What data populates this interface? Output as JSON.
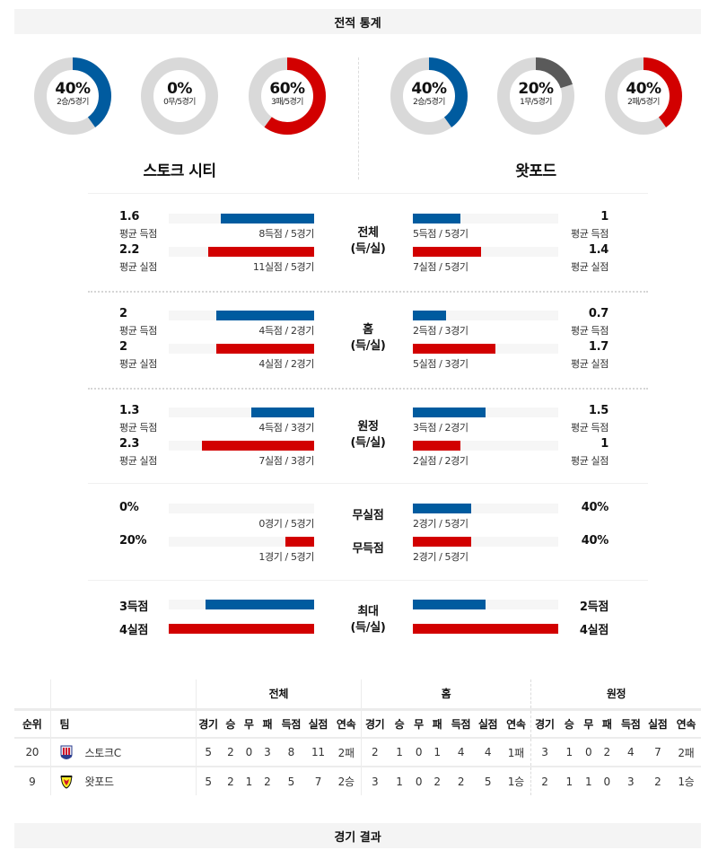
{
  "header": {
    "title": "전적 통계"
  },
  "footer": {
    "title": "경기 결과"
  },
  "colors": {
    "blue": "#005b9f",
    "red": "#d20000",
    "gray": "#5a5a5a",
    "track": "#d9d9d9",
    "bar_track": "#f6f6f6"
  },
  "teams": {
    "home": {
      "name": "스토크 시티",
      "donuts": [
        {
          "pct": "40%",
          "sub": "2승/5경기",
          "value": 40,
          "color": "#005b9f"
        },
        {
          "pct": "0%",
          "sub": "0무/5경기",
          "value": 0,
          "color": "#5a5a5a"
        },
        {
          "pct": "60%",
          "sub": "3패/5경기",
          "value": 60,
          "color": "#d20000"
        }
      ]
    },
    "away": {
      "name": "왓포드",
      "donuts": [
        {
          "pct": "40%",
          "sub": "2승/5경기",
          "value": 40,
          "color": "#005b9f"
        },
        {
          "pct": "20%",
          "sub": "1무/5경기",
          "value": 20,
          "color": "#5a5a5a"
        },
        {
          "pct": "40%",
          "sub": "2패/5경기",
          "value": 40,
          "color": "#d20000"
        }
      ]
    }
  },
  "groups": [
    {
      "label1": "전체",
      "label2": "(득/실)",
      "home": {
        "for_avg": "1.6",
        "for_label": "평균 득점",
        "for_cap": "8득점 / 5경기",
        "for_pct": 64,
        "against_avg": "2.2",
        "against_label": "평균 실점",
        "against_cap": "11실점 / 5경기",
        "against_pct": 73
      },
      "away": {
        "for_avg": "1",
        "for_label": "평균 득점",
        "for_cap": "5득점 / 5경기",
        "for_pct": 33,
        "against_avg": "1.4",
        "against_label": "평균 실점",
        "against_cap": "7실점 / 5경기",
        "against_pct": 47
      }
    },
    {
      "label1": "홈",
      "label2": "(득/실)",
      "home": {
        "for_avg": "2",
        "for_label": "평균 득점",
        "for_cap": "4득점 / 2경기",
        "for_pct": 67,
        "against_avg": "2",
        "against_label": "평균 실점",
        "against_cap": "4실점 / 2경기",
        "against_pct": 67
      },
      "away": {
        "for_avg": "0.7",
        "for_label": "평균 득점",
        "for_cap": "2득점 / 3경기",
        "for_pct": 23,
        "against_avg": "1.7",
        "against_label": "평균 실점",
        "against_cap": "5실점 / 3경기",
        "against_pct": 57
      }
    },
    {
      "label1": "원정",
      "label2": "(득/실)",
      "home": {
        "for_avg": "1.3",
        "for_label": "평균 득점",
        "for_cap": "4득점 / 3경기",
        "for_pct": 43,
        "against_avg": "2.3",
        "against_label": "평균 실점",
        "against_cap": "7실점 / 3경기",
        "against_pct": 77
      },
      "away": {
        "for_avg": "1.5",
        "for_label": "평균 득점",
        "for_cap": "3득점 / 2경기",
        "for_pct": 50,
        "against_avg": "1",
        "against_label": "평균 실점",
        "against_cap": "2실점 / 2경기",
        "against_pct": 33
      }
    }
  ],
  "clean": {
    "clean_sheet": {
      "label": "무실점",
      "home_pct": "0%",
      "home_cap": "0경기 / 5경기",
      "home_val": 0,
      "away_pct": "40%",
      "away_cap": "2경기 / 5경기",
      "away_val": 40
    },
    "no_score": {
      "label": "무득점",
      "home_pct": "20%",
      "home_cap": "1경기 / 5경기",
      "home_val": 20,
      "away_pct": "40%",
      "away_cap": "2경기 / 5경기",
      "away_val": 40
    }
  },
  "max": {
    "label1": "최대",
    "label2": "(득/실)",
    "home_for": "3득점",
    "home_for_pct": 75,
    "home_against": "4실점",
    "home_against_pct": 100,
    "away_for": "2득점",
    "away_for_pct": 50,
    "away_against": "4실점",
    "away_against_pct": 100
  },
  "table": {
    "group_headers": [
      "전체",
      "홈",
      "원정"
    ],
    "col_rank": "순위",
    "col_team": "팀",
    "sub_headers": [
      "경기",
      "승",
      "무",
      "패",
      "득점",
      "실점",
      "연속"
    ],
    "rows": [
      {
        "rank": "20",
        "team": "스토크C",
        "crest": "stoke-crest",
        "total": [
          "5",
          "2",
          "0",
          "3",
          "8",
          "11",
          "2패"
        ],
        "home": [
          "2",
          "1",
          "0",
          "1",
          "4",
          "4",
          "1패"
        ],
        "away": [
          "3",
          "1",
          "0",
          "2",
          "4",
          "7",
          "2패"
        ]
      },
      {
        "rank": "9",
        "team": "왓포드",
        "crest": "watford-crest",
        "total": [
          "5",
          "2",
          "1",
          "2",
          "5",
          "7",
          "2승"
        ],
        "home": [
          "3",
          "1",
          "0",
          "2",
          "2",
          "5",
          "1승"
        ],
        "away": [
          "2",
          "1",
          "1",
          "0",
          "3",
          "2",
          "1승"
        ]
      }
    ]
  }
}
